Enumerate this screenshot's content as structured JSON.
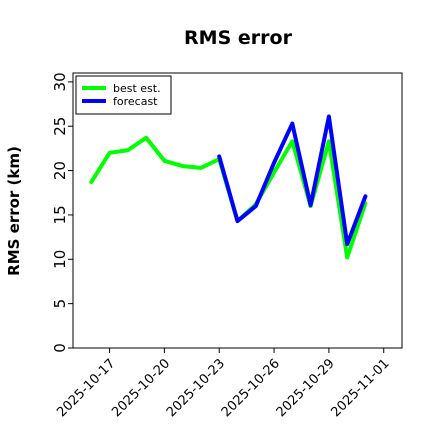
{
  "chart_data": {
    "type": "line",
    "title": "RMS error",
    "xlabel": "",
    "ylabel": "RMS error (km)",
    "ylim": [
      0,
      31
    ],
    "yticks": [
      0,
      5,
      10,
      15,
      20,
      25,
      30
    ],
    "xlim": [
      "2025-10-15",
      "2025-11-02"
    ],
    "xticks": [
      "2025-10-17",
      "2025-10-20",
      "2025-10-23",
      "2025-10-26",
      "2025-10-29",
      "2025-11-01"
    ],
    "highlight_tick": "2025-10-23",
    "highlight_color": "#228b22",
    "grid": false,
    "legend_position": "top-left",
    "series": [
      {
        "name": "best est.",
        "color": "#00ff00",
        "x": [
          "2025-10-16",
          "2025-10-17",
          "2025-10-18",
          "2025-10-19",
          "2025-10-20",
          "2025-10-21",
          "2025-10-22",
          "2025-10-23",
          "2025-10-24",
          "2025-10-25",
          "2025-10-26",
          "2025-10-27",
          "2025-10-28",
          "2025-10-29",
          "2025-10-30",
          "2025-10-31"
        ],
        "values": [
          18.7,
          22.0,
          22.3,
          23.7,
          21.1,
          20.5,
          20.3,
          21.3,
          14.3,
          16.2,
          19.8,
          23.3,
          16.0,
          23.3,
          10.2,
          16.3
        ]
      },
      {
        "name": "forecast",
        "color": "#0000ff",
        "x": [
          "2025-10-23",
          "2025-10-24",
          "2025-10-25",
          "2025-10-26",
          "2025-10-27",
          "2025-10-28",
          "2025-10-29",
          "2025-10-30",
          "2025-10-31"
        ],
        "values": [
          21.6,
          14.3,
          16.0,
          20.9,
          25.3,
          16.1,
          26.1,
          11.7,
          17.1
        ]
      }
    ]
  }
}
